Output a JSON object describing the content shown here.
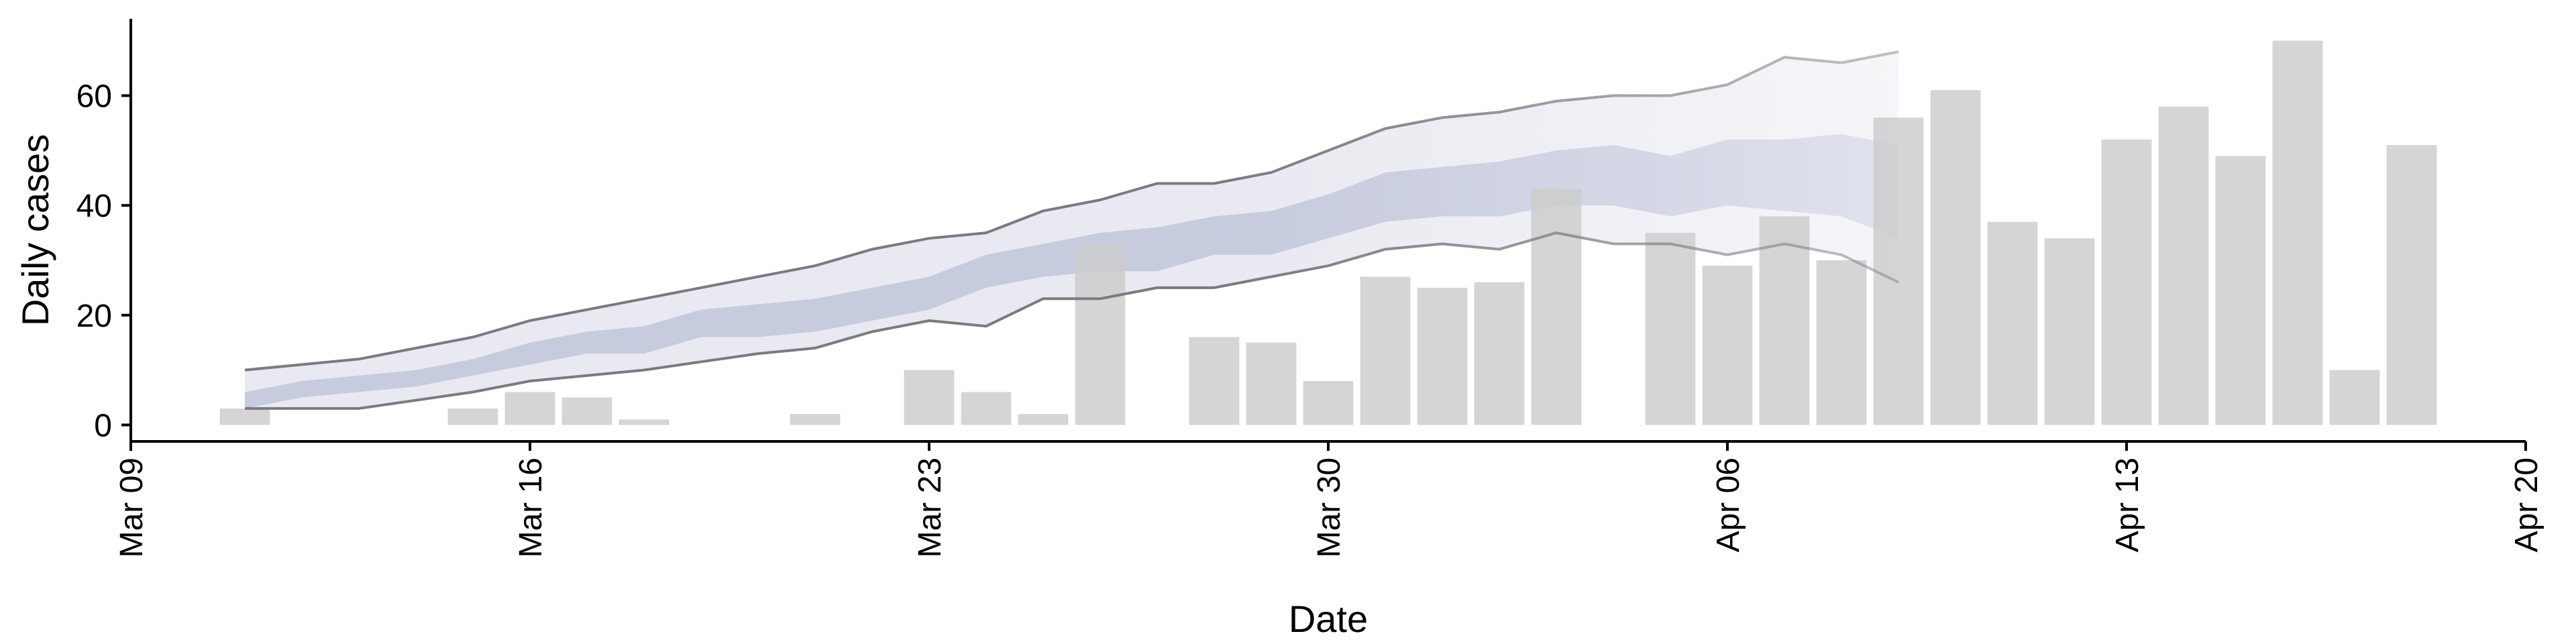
{
  "chart_data": {
    "type": "bar",
    "xlabel": "Date",
    "ylabel": "Daily cases",
    "x_ticks": [
      "Mar 09",
      "Mar 16",
      "Mar 23",
      "Mar 30",
      "Apr 06",
      "Apr 13",
      "Apr 20"
    ],
    "x_tick_dates": [
      "2020-03-09",
      "2020-03-16",
      "2020-03-23",
      "2020-03-30",
      "2020-04-06",
      "2020-04-13",
      "2020-04-20"
    ],
    "y_ticks": [
      "0",
      "20",
      "40",
      "60"
    ],
    "y_tick_values": [
      0,
      20,
      40,
      60
    ],
    "xlim": [
      "2020-03-09",
      "2020-04-20"
    ],
    "ylim": [
      -3,
      74
    ],
    "grid": false,
    "colors": {
      "bars": "#cccccc",
      "band_outer": "#e9eaf1",
      "band_inner": "#c6cbde",
      "band_lines": "#7a7a80"
    },
    "series": [
      {
        "type": "bar",
        "x": [
          "2020-03-11",
          "2020-03-12",
          "2020-03-13",
          "2020-03-14",
          "2020-03-15",
          "2020-03-16",
          "2020-03-17",
          "2020-03-18",
          "2020-03-19",
          "2020-03-20",
          "2020-03-21",
          "2020-03-22",
          "2020-03-23",
          "2020-03-24",
          "2020-03-25",
          "2020-03-26",
          "2020-03-27",
          "2020-03-28",
          "2020-03-29",
          "2020-03-30",
          "2020-03-31",
          "2020-04-01",
          "2020-04-02",
          "2020-04-03",
          "2020-04-04",
          "2020-04-05",
          "2020-04-06",
          "2020-04-07",
          "2020-04-08",
          "2020-04-09",
          "2020-04-10",
          "2020-04-11",
          "2020-04-12",
          "2020-04-13",
          "2020-04-14",
          "2020-04-15",
          "2020-04-16",
          "2020-04-17",
          "2020-04-18"
        ],
        "values": [
          3,
          0,
          0,
          0,
          3,
          6,
          5,
          1,
          0,
          0,
          2,
          0,
          10,
          6,
          2,
          33,
          0,
          16,
          15,
          8,
          27,
          25,
          26,
          43,
          0,
          35,
          29,
          38,
          30,
          56,
          61,
          37,
          34,
          52,
          58,
          49,
          70,
          10,
          51
        ]
      },
      {
        "type": "band",
        "level": "outer",
        "x": [
          "2020-03-11",
          "2020-03-13",
          "2020-03-15",
          "2020-03-16",
          "2020-03-18",
          "2020-03-20",
          "2020-03-21",
          "2020-03-22",
          "2020-03-23",
          "2020-03-24",
          "2020-03-25",
          "2020-03-26",
          "2020-03-27",
          "2020-03-28",
          "2020-03-29",
          "2020-03-30",
          "2020-03-31",
          "2020-04-01",
          "2020-04-02",
          "2020-04-03",
          "2020-04-04",
          "2020-04-05",
          "2020-04-06",
          "2020-04-07",
          "2020-04-08",
          "2020-04-09"
        ],
        "upper": [
          10,
          12,
          16,
          19,
          23,
          27,
          29,
          32,
          34,
          35,
          39,
          41,
          44,
          44,
          46,
          50,
          54,
          56,
          57,
          59,
          60,
          60,
          62,
          67,
          66,
          68
        ],
        "lower": [
          3,
          3,
          6,
          8,
          10,
          13,
          14,
          17,
          19,
          18,
          23,
          23,
          25,
          25,
          27,
          29,
          32,
          33,
          32,
          35,
          33,
          33,
          31,
          33,
          31,
          26
        ]
      },
      {
        "type": "band",
        "level": "inner",
        "x": [
          "2020-03-11",
          "2020-03-12",
          "2020-03-13",
          "2020-03-14",
          "2020-03-15",
          "2020-03-16",
          "2020-03-17",
          "2020-03-18",
          "2020-03-19",
          "2020-03-20",
          "2020-03-21",
          "2020-03-22",
          "2020-03-23",
          "2020-03-24",
          "2020-03-25",
          "2020-03-26",
          "2020-03-27",
          "2020-03-28",
          "2020-03-29",
          "2020-03-30",
          "2020-03-31",
          "2020-04-01",
          "2020-04-02",
          "2020-04-03",
          "2020-04-04",
          "2020-04-05",
          "2020-04-06",
          "2020-04-07",
          "2020-04-08",
          "2020-04-09"
        ],
        "upper": [
          6,
          8,
          9,
          10,
          12,
          15,
          17,
          18,
          21,
          22,
          23,
          25,
          27,
          31,
          33,
          35,
          36,
          38,
          39,
          42,
          46,
          47,
          48,
          50,
          51,
          49,
          52,
          52,
          53,
          51
        ],
        "lower": [
          3,
          5,
          6,
          7,
          9,
          11,
          13,
          13,
          16,
          16,
          17,
          19,
          21,
          25,
          27,
          28,
          28,
          31,
          31,
          34,
          37,
          38,
          38,
          40,
          40,
          38,
          40,
          39,
          38,
          34
        ]
      }
    ]
  }
}
